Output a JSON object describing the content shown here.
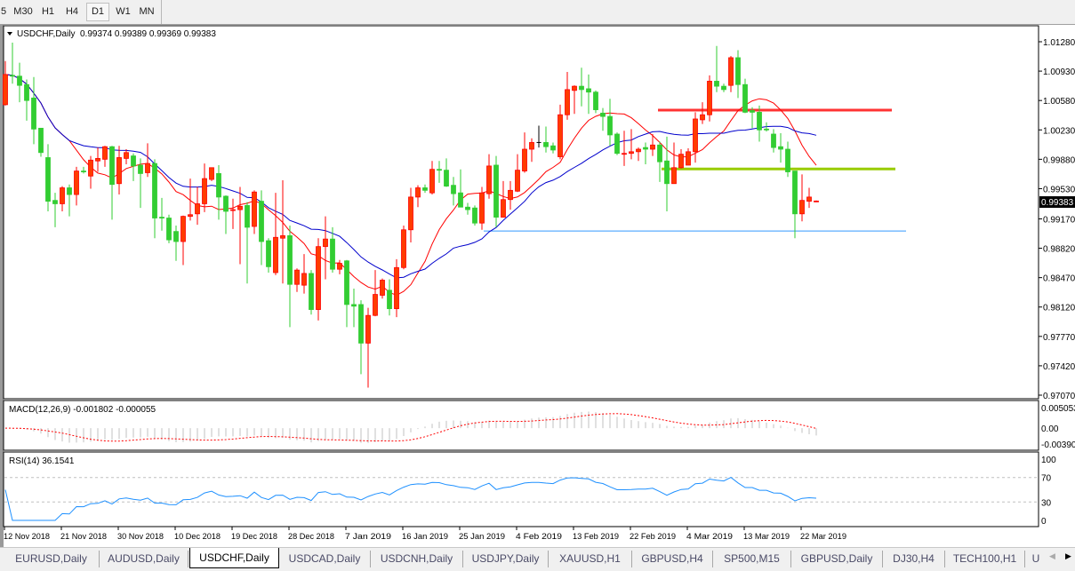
{
  "toolbar": {
    "timeframes": [
      {
        "label": "5"
      },
      {
        "label": "M30"
      },
      {
        "label": "H1"
      },
      {
        "label": "H4"
      },
      {
        "label": "D1",
        "active": true
      },
      {
        "label": "W1"
      },
      {
        "label": "MN"
      }
    ]
  },
  "chart": {
    "symbol_label": "USDCHF,Daily",
    "ohlc_label": "0.99374 0.99389 0.99369 0.99383",
    "current_price": "0.99383",
    "macd_label": "MACD(12,26,9) -0.001802 -0.000055",
    "rsi_label": "RSI(14) 36.1541"
  },
  "colors": {
    "bull_candle": "#ff3c00",
    "bull_wick": "#ff0000",
    "bear_candle": "#32cd32",
    "doji": "#000000",
    "ma_fast": "#ff0000",
    "ma_slow": "#0000cc",
    "resistance_line": "#ff3333",
    "pivot_line": "#99cc00",
    "support_line": "#3399ff",
    "macd_histogram": "#c0c0c0",
    "macd_signal": "#ff0000",
    "rsi_line": "#1e90ff"
  },
  "chart_data": {
    "type": "candlestick",
    "symbol": "USDCHF",
    "timeframe": "Daily",
    "price_axis": {
      "ylim": [
        0.9707,
        1.0128
      ],
      "ticks": [
        "1.01280",
        "1.00930",
        "1.00580",
        "1.00230",
        "0.99880",
        "0.99530",
        "0.99170",
        "0.98820",
        "0.98470",
        "0.98120",
        "0.97770",
        "0.97420",
        "0.97070"
      ]
    },
    "date_axis": {
      "ticks": [
        "12 Nov 2018",
        "21 Nov 2018",
        "30 Nov 2018",
        "10 Dec 2018",
        "19 Dec 2018",
        "28 Dec 2018",
        "7 Jan 2019",
        "16 Jan 2019",
        "25 Jan 2019",
        "4 Feb 2019",
        "13 Feb 2019",
        "22 Feb 2019",
        "4 Mar 2019",
        "13 Mar 2019",
        "22 Mar 2019"
      ]
    },
    "fields": [
      "open",
      "high",
      "low",
      "close"
    ],
    "candles": [
      [
        1.0053,
        1.0105,
        1.0052,
        1.0089
      ],
      [
        1.0088,
        1.0127,
        1.0078,
        1.0087
      ],
      [
        1.0087,
        1.0103,
        1.0056,
        1.0076
      ],
      [
        1.0077,
        1.0083,
        1.0034,
        1.0058
      ],
      [
        1.0061,
        1.0086,
        1.0006,
        1.0024
      ],
      [
        1.0025,
        1.0025,
        0.9991,
        0.9996
      ],
      [
        0.999,
        1.0006,
        0.9926,
        0.9938
      ],
      [
        0.9939,
        0.9948,
        0.9907,
        0.9935
      ],
      [
        0.9935,
        0.9956,
        0.9926,
        0.9954
      ],
      [
        0.9954,
        0.9958,
        0.992,
        0.9946
      ],
      [
        0.9946,
        0.9979,
        0.9933,
        0.9974
      ],
      [
        0.9974,
        0.9979,
        0.9971,
        0.9973
      ],
      [
        0.9968,
        0.9992,
        0.9953,
        0.9987
      ],
      [
        0.9986,
        1.0002,
        0.9973,
        0.9989
      ],
      [
        0.9988,
        1.0004,
        0.9979,
        1.0003
      ],
      [
        1.0003,
        1.0004,
        0.9916,
        0.9958
      ],
      [
        0.9959,
        1.0004,
        0.9946,
        0.999
      ],
      [
        0.9989,
        1.0,
        0.9982,
        0.9996
      ],
      [
        0.9992,
        0.9995,
        0.9962,
        0.998
      ],
      [
        0.9981,
        0.9989,
        0.993,
        0.9971
      ],
      [
        0.9972,
        1.0007,
        0.9967,
        0.9983
      ],
      [
        0.9983,
        0.9988,
        0.9894,
        0.9918
      ],
      [
        0.9919,
        0.9942,
        0.9903,
        0.9918
      ],
      [
        0.9918,
        0.9922,
        0.9888,
        0.9892
      ],
      [
        0.9902,
        0.9909,
        0.9867,
        0.989
      ],
      [
        0.989,
        0.9921,
        0.9862,
        0.992
      ],
      [
        0.992,
        0.9965,
        0.9915,
        0.9922
      ],
      [
        0.9923,
        0.9955,
        0.991,
        0.9935
      ],
      [
        0.9935,
        0.9983,
        0.9925,
        0.9965
      ],
      [
        0.9964,
        0.9978,
        0.9962,
        0.9978
      ],
      [
        0.9971,
        0.9981,
        0.9916,
        0.9943
      ],
      [
        0.9944,
        0.9945,
        0.9899,
        0.9926
      ],
      [
        0.9927,
        0.9941,
        0.9905,
        0.9928
      ],
      [
        0.9928,
        0.9955,
        0.9863,
        0.9932
      ],
      [
        0.9933,
        0.9937,
        0.984,
        0.9907
      ],
      [
        0.9908,
        0.9951,
        0.9899,
        0.9949
      ],
      [
        0.9938,
        0.9951,
        0.9862,
        0.989
      ],
      [
        0.9891,
        0.9894,
        0.9853,
        0.986
      ],
      [
        0.9853,
        0.9948,
        0.985,
        0.9895
      ],
      [
        0.9894,
        0.9963,
        0.984,
        0.9897
      ],
      [
        0.9897,
        0.9909,
        0.9788,
        0.9839
      ],
      [
        0.9839,
        0.9858,
        0.983,
        0.9856
      ],
      [
        0.9838,
        0.9875,
        0.9828,
        0.9852
      ],
      [
        0.9852,
        0.9856,
        0.9803,
        0.9809
      ],
      [
        0.9809,
        0.9894,
        0.9796,
        0.9884
      ],
      [
        0.9884,
        0.992,
        0.9845,
        0.9893
      ],
      [
        0.9893,
        0.9907,
        0.9853,
        0.9857
      ],
      [
        0.9857,
        0.9868,
        0.9851,
        0.9864
      ],
      [
        0.9867,
        0.9868,
        0.9788,
        0.9815
      ],
      [
        0.9815,
        0.9834,
        0.9788,
        0.9813
      ],
      [
        0.9815,
        0.982,
        0.9732,
        0.9769
      ],
      [
        0.9769,
        0.9811,
        0.9716,
        0.9802
      ],
      [
        0.9802,
        0.9856,
        0.9801,
        0.9827
      ],
      [
        0.9826,
        0.9846,
        0.9822,
        0.9844
      ],
      [
        0.9832,
        0.9845,
        0.9802,
        0.981
      ],
      [
        0.981,
        0.9869,
        0.98,
        0.9859
      ],
      [
        0.9859,
        0.9909,
        0.9857,
        0.9904
      ],
      [
        0.9904,
        0.9954,
        0.9889,
        0.9943
      ],
      [
        0.9943,
        0.9957,
        0.9931,
        0.9954
      ],
      [
        0.9954,
        0.9958,
        0.9948,
        0.9951
      ],
      [
        0.9948,
        0.9986,
        0.9946,
        0.9976
      ],
      [
        0.9976,
        0.9986,
        0.996,
        0.9975
      ],
      [
        0.9975,
        0.9989,
        0.9955,
        0.9956
      ],
      [
        0.9957,
        0.9967,
        0.9933,
        0.9947
      ],
      [
        0.9948,
        0.9976,
        0.9931,
        0.9931
      ],
      [
        0.9931,
        0.9936,
        0.9922,
        0.9928
      ],
      [
        0.993,
        0.9933,
        0.9909,
        0.9912
      ],
      [
        0.9912,
        0.9955,
        0.9904,
        0.9948
      ],
      [
        0.9947,
        0.9994,
        0.9941,
        0.998
      ],
      [
        0.9981,
        0.9992,
        0.9907,
        0.9919
      ],
      [
        0.9919,
        0.9962,
        0.9919,
        0.994
      ],
      [
        0.994,
        0.9962,
        0.9928,
        0.9951
      ],
      [
        0.995,
        0.9994,
        0.9949,
        0.9975
      ],
      [
        0.9974,
        1.002,
        0.9972,
        1.0
      ],
      [
        1.0,
        1.0013,
        0.9985,
        1.0008
      ],
      [
        1.0008,
        1.0028,
        1.0002,
        1.0008
      ],
      [
        1.0008,
        1.0027,
        0.9996,
        1.0003
      ],
      [
        1.0004,
        1.0008,
        0.9995,
        0.9999
      ],
      [
        0.9991,
        1.0053,
        0.9988,
        1.0041
      ],
      [
        1.0041,
        1.0092,
        1.0035,
        1.0071
      ],
      [
        1.007,
        1.0076,
        1.0042,
        1.0075
      ],
      [
        1.0075,
        1.0097,
        1.0051,
        1.0071
      ],
      [
        1.0072,
        1.0089,
        1.0042,
        1.0068
      ],
      [
        1.0068,
        1.007,
        1.0043,
        1.0047
      ],
      [
        1.0043,
        1.0049,
        1.0022,
        1.0039
      ],
      [
        1.0039,
        1.006,
        1.0004,
        1.0017
      ],
      [
        1.0018,
        1.002,
        0.9993,
        0.9995
      ],
      [
        0.9994,
        1.0022,
        0.998,
        0.9995
      ],
      [
        0.9995,
        1.0024,
        0.9988,
        0.9997
      ],
      [
        0.9997,
        1.0002,
        0.9986,
        1.0
      ],
      [
        1.0002,
        1.0008,
        0.9982,
        1.0
      ],
      [
        1.0,
        1.0018,
        0.9992,
        1.0005
      ],
      [
        1.0005,
        1.0009,
        0.9961,
        0.9985
      ],
      [
        0.9986,
        1.0015,
        0.9926,
        0.9959
      ],
      [
        0.9959,
        1.0008,
        0.9959,
        0.9978
      ],
      [
        0.9978,
        1.0,
        0.9977,
        0.9994
      ],
      [
        0.9981,
        1.0001,
        0.9981,
        0.9997
      ],
      [
        0.9997,
        1.0044,
        0.9984,
        1.0036
      ],
      [
        1.0035,
        1.0056,
        1.003,
        1.0041
      ],
      [
        1.0041,
        1.0088,
        1.0033,
        1.0081
      ],
      [
        1.0081,
        1.0123,
        1.0068,
        1.0075
      ],
      [
        1.0075,
        1.0078,
        1.0068,
        1.0071
      ],
      [
        1.0076,
        1.0111,
        1.0068,
        1.0109
      ],
      [
        1.0109,
        1.0118,
        1.0061,
        1.0077
      ],
      [
        1.0077,
        1.0084,
        1.0043,
        1.0044
      ],
      [
        1.0046,
        1.005,
        1.0025,
        1.0044
      ],
      [
        1.0044,
        1.0052,
        1.0009,
        1.0023
      ],
      [
        1.0024,
        1.0032,
        1.0021,
        1.0023
      ],
      [
        1.0018,
        1.0024,
        0.9996,
        1.0002
      ],
      [
        1.0003,
        1.0019,
        0.9984,
        1.0
      ],
      [
        1.0,
        1.0009,
        0.9967,
        0.9973
      ],
      [
        0.9974,
        0.9974,
        0.9894,
        0.9923
      ],
      [
        0.9923,
        0.997,
        0.9914,
        0.9939
      ],
      [
        0.9938,
        0.9954,
        0.993,
        0.9943
      ],
      [
        0.99374,
        0.99389,
        0.99369,
        0.99383
      ]
    ],
    "horizontal_lines": [
      {
        "price": 1.00465,
        "color": "#ff3333"
      },
      {
        "price": 0.99765,
        "color": "#99cc00"
      },
      {
        "price": 0.99026,
        "color": "#3399ff"
      }
    ],
    "macd": {
      "params": "12,26,9",
      "main": -0.001802,
      "signal": -5.5e-05,
      "axis_ticks": [
        "0.005053",
        "0.00",
        "-0.003909"
      ],
      "ylim": [
        -0.003909,
        0.005053
      ]
    },
    "rsi": {
      "period": 14,
      "value": 36.1541,
      "axis_ticks": [
        "100",
        "70",
        "30",
        "0"
      ],
      "levels": [
        70,
        30
      ]
    }
  },
  "tabs": [
    {
      "label": "EURUSD,Daily"
    },
    {
      "label": "AUDUSD,Daily"
    },
    {
      "label": "USDCHF,Daily",
      "active": true
    },
    {
      "label": "USDCAD,Daily"
    },
    {
      "label": "USDCNH,Daily"
    },
    {
      "label": "USDJPY,Daily"
    },
    {
      "label": "XAUUSD,H1"
    },
    {
      "label": "GBPUSD,H4"
    },
    {
      "label": "SP500,M15"
    },
    {
      "label": "GBPUSD,Daily"
    },
    {
      "label": "DJ30,H4"
    },
    {
      "label": "TECH100,H1"
    },
    {
      "label": "U"
    }
  ]
}
